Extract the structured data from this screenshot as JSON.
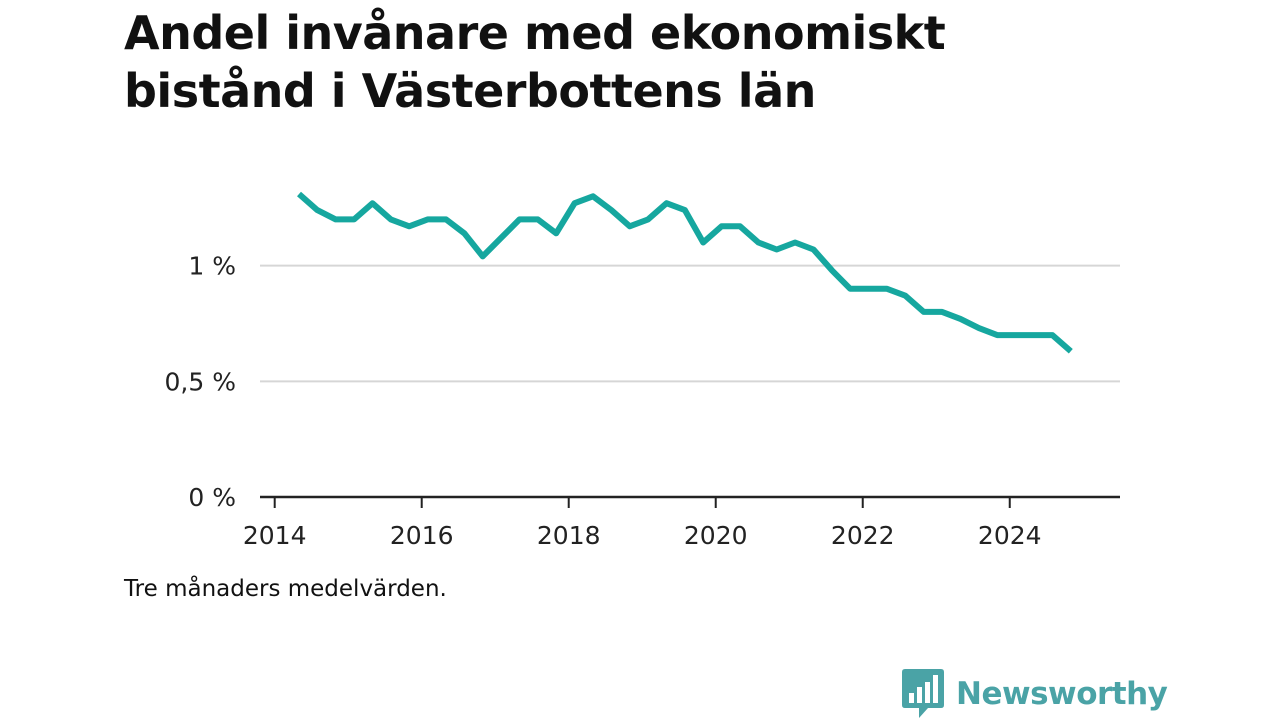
{
  "title": "Andel invånare med ekonomiskt bistånd i Västerbottens län",
  "note": "Tre månaders medelvärden.",
  "brand": {
    "name": "Newsworthy",
    "color": "#4aa3a6"
  },
  "chart_data": {
    "type": "line",
    "line_color": "#16a79f",
    "grid": true,
    "xlim": [
      2013.8,
      2025.5
    ],
    "ylim": [
      0,
      1.5
    ],
    "x_ticks": [
      2014,
      2016,
      2018,
      2020,
      2022,
      2024
    ],
    "x_tick_labels": [
      "2014",
      "2016",
      "2018",
      "2020",
      "2022",
      "2024"
    ],
    "y_ticks": [
      0,
      0.5,
      1
    ],
    "y_tick_labels": [
      "0 %",
      "0,5 %",
      "1 %"
    ],
    "series": [
      {
        "x": [
          2014.33,
          2014.58,
          2014.83,
          2015.08,
          2015.33,
          2015.58,
          2015.83,
          2016.08,
          2016.33,
          2016.58,
          2016.83,
          2017.08,
          2017.33,
          2017.58,
          2017.83,
          2018.08,
          2018.33,
          2018.58,
          2018.83,
          2019.08,
          2019.33,
          2019.58,
          2019.83,
          2020.08,
          2020.33,
          2020.58,
          2020.83,
          2021.08,
          2021.33,
          2021.58,
          2021.83,
          2022.08,
          2022.33,
          2022.58,
          2022.83,
          2023.08,
          2023.33,
          2023.58,
          2023.83,
          2024.08,
          2024.33,
          2024.58,
          2024.83
        ],
        "y": [
          1.31,
          1.24,
          1.2,
          1.2,
          1.27,
          1.2,
          1.17,
          1.2,
          1.2,
          1.14,
          1.04,
          1.12,
          1.2,
          1.2,
          1.14,
          1.27,
          1.3,
          1.24,
          1.17,
          1.2,
          1.27,
          1.24,
          1.1,
          1.17,
          1.17,
          1.1,
          1.07,
          1.1,
          1.07,
          0.98,
          0.9,
          0.9,
          0.9,
          0.87,
          0.8,
          0.8,
          0.77,
          0.73,
          0.7,
          0.7,
          0.7,
          0.7,
          0.63
        ]
      }
    ]
  }
}
